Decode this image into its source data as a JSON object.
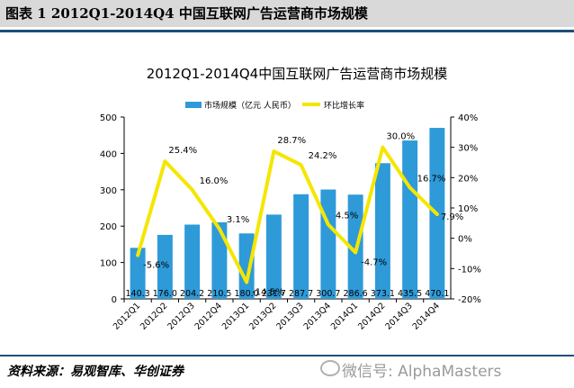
{
  "figure": {
    "title": "图表 1   2012Q1-2014Q4 中国互联网广告运营商市场规模",
    "source": "资料来源：易观智库、华创证券",
    "watermark": "微信号: AlphaMasters"
  },
  "chart_data": {
    "type": "bar+line",
    "title": "2012Q1-2014Q4中国互联网广告运营商市场规模",
    "categories": [
      "2012Q1",
      "2012Q2",
      "2012Q3",
      "2012Q4",
      "2013Q1",
      "2013Q2",
      "2013Q3",
      "2013Q4",
      "2014Q1",
      "2014Q2",
      "2014Q3",
      "2014Q4"
    ],
    "series": [
      {
        "name": "市场规模（亿元 人民币）",
        "type": "bar",
        "axis": "left",
        "color": "#2e9ad8",
        "values": [
          140.3,
          176.0,
          204.2,
          210.5,
          180.0,
          231.7,
          287.7,
          300.7,
          286.6,
          373.1,
          435.5,
          470.1
        ],
        "labels": [
          "140.3",
          "176.0",
          "204.2",
          "210.5",
          "180.0",
          "231.7",
          "287.7",
          "300.7",
          "286.6",
          "373.1",
          "435.5",
          "470.1"
        ]
      },
      {
        "name": "环比增长率",
        "type": "line",
        "axis": "right",
        "color": "#f5e600",
        "values": [
          -5.6,
          25.4,
          16.0,
          3.1,
          -14.5,
          28.7,
          24.2,
          4.5,
          -4.7,
          30.0,
          16.7,
          7.9
        ],
        "labels": [
          "-5.6%",
          "25.4%",
          "16.0%",
          "3.1%",
          "-14.5%",
          "28.7%",
          "24.2%",
          "4.5%",
          "-4.7%",
          "30.0%",
          "16.7%",
          "7.9%"
        ]
      }
    ],
    "y_left": {
      "range": [
        0,
        500
      ],
      "ticks": [
        "0",
        "100",
        "200",
        "300",
        "400",
        "500"
      ]
    },
    "y_right": {
      "range": [
        -20,
        40
      ],
      "ticks": [
        "-20%",
        "-10%",
        "0%",
        "10%",
        "20%",
        "30%",
        "40%"
      ]
    },
    "legend": {
      "position": "top-center"
    },
    "grid": false
  }
}
